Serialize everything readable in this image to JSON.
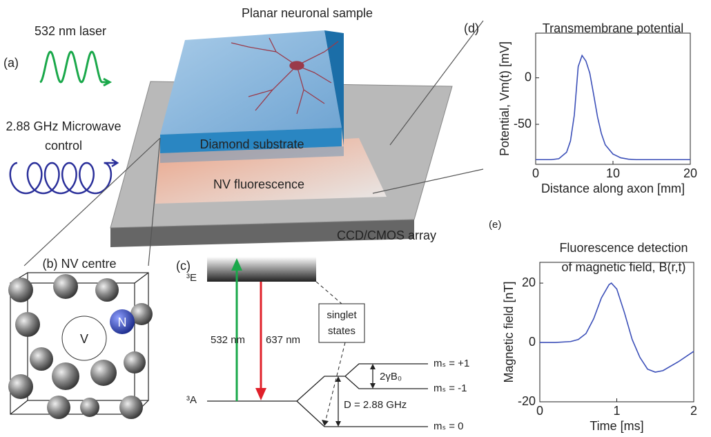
{
  "figure": {
    "panel_a": "(a)",
    "laser": "532 nm laser",
    "microwave": [
      "2.88 GHz Microwave",
      "control"
    ],
    "sample": "Planar neuronal sample",
    "diamond": "Diamond substrate",
    "fluorescence": "NV fluorescence",
    "array": "CCD/CMOS array",
    "panel_b": "(b) NV centre",
    "vacancy": "V",
    "nitrogen": "N",
    "panel_c": "(c)",
    "excited": "³E",
    "ground": "³A",
    "absorb": "532 nm",
    "emit": "637 nm",
    "singlet": [
      "singlet",
      "states"
    ],
    "zeeman": "2γB₀",
    "zfs": "D = 2.88 GHz",
    "ms_plus": "mₛ = +1",
    "ms_minus": "mₛ = -1",
    "ms_zero": "mₛ = 0",
    "panel_d": "(d)",
    "panel_e": "(e)"
  },
  "chart_data": [
    {
      "type": "line",
      "title": [
        "Transmembrane potential"
      ],
      "xlabel": "Distance along axon [mm]",
      "ylabel": "Potential, Vm(t)  [mV]",
      "x": [
        0,
        1,
        2,
        3,
        4,
        4.5,
        5,
        5.5,
        6,
        6.5,
        7,
        7.5,
        8,
        8.5,
        9,
        10,
        11,
        12,
        13,
        14,
        16,
        18,
        20
      ],
      "series": [
        {
          "color": "#3b4fb8",
          "values": [
            -88,
            -88,
            -88,
            -87,
            -80,
            -68,
            -40,
            12,
            24,
            18,
            5,
            -18,
            -42,
            -60,
            -72,
            -82,
            -86,
            -87.5,
            -88,
            -88,
            -88,
            -88,
            -88
          ]
        }
      ],
      "xlim": [
        0,
        20
      ],
      "xticks": [
        0,
        10,
        20
      ],
      "ylim": [
        -93,
        48
      ],
      "yticks": [
        -50,
        0
      ]
    },
    {
      "type": "line",
      "title": [
        "Fluorescence detection",
        "of magnetic field, B(r,t)"
      ],
      "xlabel": "Time [ms]",
      "ylabel": "Magnetic field [nT]",
      "x": [
        0,
        0.2,
        0.4,
        0.5,
        0.6,
        0.7,
        0.8,
        0.9,
        0.93,
        1,
        1.1,
        1.2,
        1.3,
        1.4,
        1.5,
        1.6,
        1.8,
        2
      ],
      "series": [
        {
          "color": "#3b4fb8",
          "values": [
            0,
            0,
            0.3,
            1,
            3,
            8,
            15,
            19.5,
            20,
            18,
            10,
            1,
            -5,
            -9,
            -10,
            -9.5,
            -6.5,
            -3
          ]
        }
      ],
      "xlim": [
        0,
        2
      ],
      "xticks": [
        0,
        1,
        2
      ],
      "ylim": [
        -20,
        27
      ],
      "yticks": [
        -20,
        0,
        20
      ]
    }
  ]
}
